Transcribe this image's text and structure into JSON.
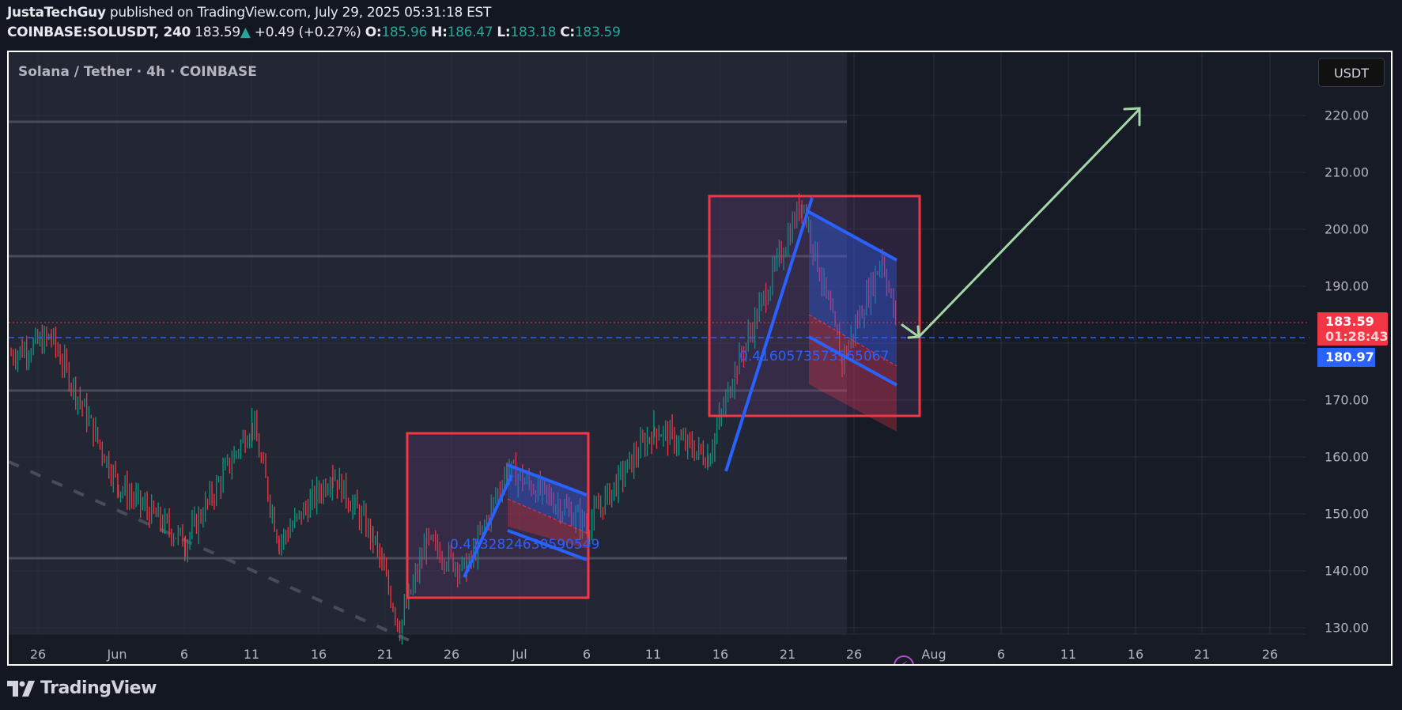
{
  "header": {
    "author": "JustaTechGuy",
    "published_text": "published on TradingView.com, July 29, 2025 05:31:18 EST",
    "symbol": "COINBASE:SOLUSDT, 240",
    "last_price": "183.59",
    "change_arrow": "▲",
    "change": "+0.49 (+0.27%)",
    "ohlc": {
      "o_label": "O:",
      "o": "185.96",
      "h_label": "H:",
      "h": "186.47",
      "l_label": "L:",
      "l": "183.18",
      "c_label": "C:",
      "c": "183.59"
    }
  },
  "chart": {
    "legend_title": "Solana / Tether · 4h · COINBASE",
    "currency_button": "USDT",
    "price_tag": {
      "price": "183.59",
      "countdown": "01:28:43",
      "color": "#f23645"
    },
    "close_tag": {
      "price": "180.97",
      "color": "#2962ff"
    },
    "annotation_1": "0.4732824630590549",
    "annotation_2": "0.4160573573565067",
    "event_icon": "lightning-icon"
  },
  "footer": {
    "logo_text": "TradingView"
  },
  "chart_data": {
    "type": "candlestick",
    "title": "Solana / Tether · 4h · COINBASE",
    "symbol": "COINBASE:SOLUSDT",
    "interval": "240",
    "xlabel": "",
    "ylabel": "USDT",
    "ylim": [
      128,
      228
    ],
    "y_ticks": [
      "220.00",
      "210.00",
      "200.00",
      "190.00",
      "170.00",
      "160.00",
      "150.00",
      "140.00",
      "130.00"
    ],
    "x_ticks": [
      "26",
      "Jun",
      "6",
      "11",
      "16",
      "21",
      "26",
      "Jul",
      "6",
      "11",
      "16",
      "21",
      "26",
      "Aug",
      "6",
      "11",
      "16",
      "21",
      "26"
    ],
    "approx_path": [
      {
        "date": "May 24",
        "price": 178
      },
      {
        "date": "May 27",
        "price": 181
      },
      {
        "date": "Jun 1",
        "price": 155
      },
      {
        "date": "Jun 6",
        "price": 145
      },
      {
        "date": "Jun 11",
        "price": 166
      },
      {
        "date": "Jun 13",
        "price": 145
      },
      {
        "date": "Jun 17",
        "price": 157
      },
      {
        "date": "Jun 20",
        "price": 146
      },
      {
        "date": "Jun 22",
        "price": 130
      },
      {
        "date": "Jun 24",
        "price": 145
      },
      {
        "date": "Jun 27",
        "price": 140
      },
      {
        "date": "Jun 30",
        "price": 158
      },
      {
        "date": "Jul 6",
        "price": 148
      },
      {
        "date": "Jul 11",
        "price": 165
      },
      {
        "date": "Jul 15",
        "price": 160
      },
      {
        "date": "Jul 17",
        "price": 175
      },
      {
        "date": "Jul 22",
        "price": 205
      },
      {
        "date": "Jul 25",
        "price": 177
      },
      {
        "date": "Jul 28",
        "price": 195
      },
      {
        "date": "Jul 29",
        "price": 183.59
      }
    ],
    "horizontal_levels": [
      219,
      195.5,
      172,
      142.5
    ],
    "last_price": 183.59,
    "close_line": 180.97,
    "drawings": [
      {
        "type": "rectangle",
        "color": "#f23645",
        "x": [
          "Jun 23",
          "Jul 6"
        ],
        "y": [
          135,
          164
        ]
      },
      {
        "type": "bull_flag",
        "pole": [
          [
            "Jun 27",
            138
          ],
          [
            "Jun 30",
            158
          ]
        ],
        "channel_top": [
          [
            "Jun 30",
            158
          ],
          [
            "Jul 6",
            153
          ]
        ],
        "channel_bottom": [
          [
            "Jun 30",
            147
          ],
          [
            "Jul 6",
            142
          ]
        ],
        "label": "0.4732824630590549"
      },
      {
        "type": "rectangle",
        "color": "#f23645",
        "x": [
          "Jul 15",
          "Jul 30"
        ],
        "y": [
          167,
          206
        ]
      },
      {
        "type": "bull_flag",
        "pole": [
          [
            "Jul 15",
            158
          ],
          [
            "Jul 22",
            206
          ]
        ],
        "channel_top": [
          [
            "Jul 22",
            203
          ],
          [
            "Jul 28",
            195
          ]
        ],
        "channel_bottom": [
          [
            "Jul 22",
            180
          ],
          [
            "Jul 28",
            173
          ]
        ],
        "label": "0.4160573573565067"
      },
      {
        "type": "arrow",
        "color": "#a5d6a7",
        "from": [
          "Jul 28",
          184
        ],
        "to": [
          "Jul 30",
          181
        ]
      },
      {
        "type": "arrow",
        "color": "#a5d6a7",
        "from": [
          "Jul 30",
          181
        ],
        "to": [
          "Aug 16",
          221
        ]
      },
      {
        "type": "dashed_trendline",
        "color": "#4a4d57",
        "from": [
          "May 24",
          159
        ],
        "to": [
          "Jun 23",
          129
        ]
      }
    ],
    "grid": true,
    "legend_position": "top-left"
  }
}
